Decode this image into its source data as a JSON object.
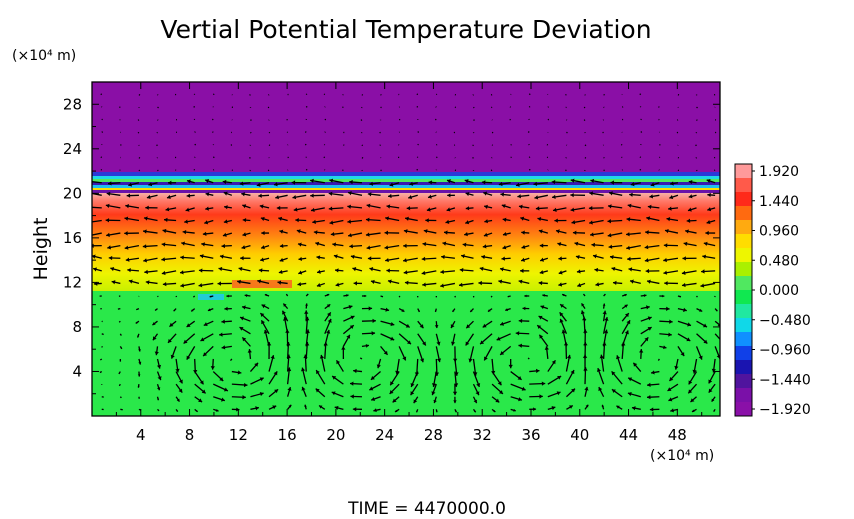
{
  "chart_data": {
    "type": "heatmap",
    "title": "Vertial Potential Temperature Deviation",
    "ylabel": "Height",
    "yunit": "(×10⁴ m)",
    "xunit": "(×10⁴ m)",
    "x_ticks": [
      "4",
      "8",
      "12",
      "16",
      "20",
      "24",
      "28",
      "32",
      "36",
      "40",
      "44",
      "48"
    ],
    "y_ticks": [
      "4",
      "8",
      "12",
      "16",
      "20",
      "24",
      "28"
    ],
    "xlim": [
      0,
      51.5
    ],
    "ylim": [
      0,
      30
    ],
    "colorbar": {
      "ticks": [
        "1.920",
        "1.440",
        "0.960",
        "0.480",
        "0.000",
        "−0.480",
        "−0.960",
        "−1.440",
        "−1.920"
      ],
      "range": [
        -1.92,
        1.92
      ],
      "colors": [
        "#ff9a9a",
        "#ff5a4a",
        "#ff2a1a",
        "#ff6a10",
        "#ffaa10",
        "#ffdd00",
        "#eef600",
        "#aaf000",
        "#50e860",
        "#10e850",
        "#20e8a0",
        "#10d8e8",
        "#1090ff",
        "#1040e8",
        "#1a14b0",
        "#50149e",
        "#7a10a8",
        "#8a10a8"
      ]
    },
    "layers": [
      {
        "y_range": [
          21.5,
          30
        ],
        "value": -1.92,
        "color": "#8a0fa6"
      },
      {
        "y_range": [
          20,
          21.5
        ],
        "value": 0.0,
        "color": "mixed"
      },
      {
        "y_range": [
          19,
          20
        ],
        "value": 1.92,
        "color": "#f9b9b9"
      },
      {
        "y_range": [
          16,
          19
        ],
        "value": 1.44,
        "color": "#ff4a1a"
      },
      {
        "y_range": [
          13.5,
          16
        ],
        "value": 0.96,
        "color": "#ffa010"
      },
      {
        "y_range": [
          11,
          13.5
        ],
        "value": 0.48,
        "color": "#e8f000"
      },
      {
        "y_range": [
          0,
          11
        ],
        "value": 0.0,
        "color": "#2ae84a"
      }
    ],
    "vortex_centers_x": [
      12,
      22,
      36,
      46
    ],
    "grid": false,
    "time_label": "TIME  =  4470000.0"
  }
}
